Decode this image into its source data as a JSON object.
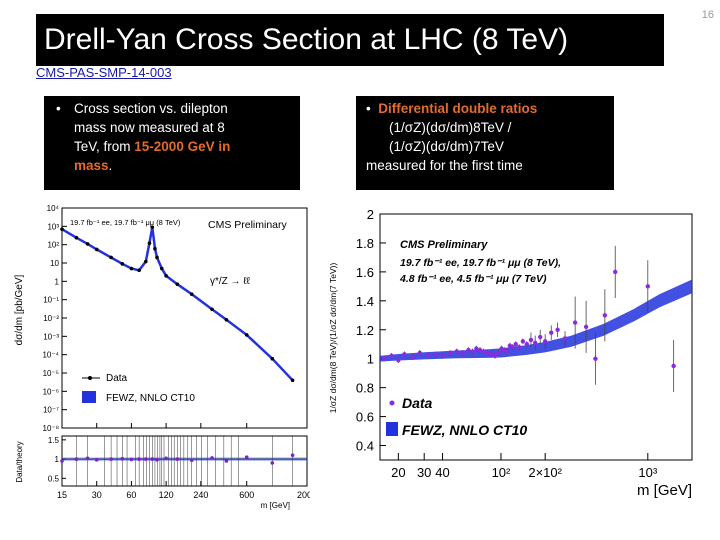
{
  "slide": {
    "number": "16",
    "title": "Drell-Yan Cross Section at LHC (8 TeV)",
    "reference": "CMS-PAS-SMP-14-003"
  },
  "left_box": {
    "bullet": "•",
    "text_1": "Cross section vs. dilepton",
    "text_2": "mass now measured at 8",
    "text_3": "TeV, from ",
    "highlight_1": "15-2000 GeV in",
    "highlight_2": "mass",
    "text_end": "."
  },
  "right_box": {
    "bullet": "•",
    "highlight": "Differential double ratios",
    "line_2": "(1/σZ)(dσ/dm)8TeV /",
    "line_3": "(1/σZ)(dσ/dm)7TeV",
    "line_4": "measured for the first time"
  },
  "chart_data": [
    {
      "type": "line",
      "title": "CMS Preliminary",
      "lumi_label": "19.7 fb⁻¹ ee, 19.7 fb⁻¹ μμ (8 TeV)",
      "process_label": "γ*/Z → ℓℓ",
      "ylabel": "dσ/dm [pb/GeV]",
      "xlabel": "m [GeV]",
      "ratio_ylabel": "Data/theory",
      "x_log": true,
      "y_log": true,
      "xlim": [
        15,
        2000
      ],
      "ylim": [
        1e-08,
        10000
      ],
      "y_ticks": [
        "10⁴",
        "10³",
        "10²",
        "10",
        "1",
        "10⁻¹",
        "10⁻²",
        "10⁻³",
        "10⁻⁴",
        "10⁻⁵",
        "10⁻⁶",
        "10⁻⁷",
        "10⁻⁸"
      ],
      "x_ticks": [
        "15",
        "30",
        "60",
        "120",
        "240",
        "600",
        "2000"
      ],
      "ratio_yticks": [
        "1.5",
        "1",
        "0.5"
      ],
      "ratio_ylim": [
        0.3,
        1.6
      ],
      "legend": [
        "Data",
        "FEWZ, NNLO CT10"
      ],
      "series": [
        {
          "name": "Data",
          "x": [
            15,
            20,
            25,
            30,
            40,
            50,
            60,
            70,
            80,
            86,
            91,
            96,
            100,
            110,
            120,
            150,
            200,
            300,
            400,
            600,
            1000,
            1500
          ],
          "values": [
            700,
            240,
            110,
            55,
            20,
            9,
            5,
            4,
            12,
            120,
            900,
            60,
            20,
            5,
            2,
            0.7,
            0.2,
            0.03,
            0.008,
            0.0012,
            6e-05,
            4e-06
          ]
        }
      ],
      "ratio_x": [
        15,
        20,
        25,
        30,
        40,
        50,
        60,
        70,
        80,
        91,
        100,
        120,
        150,
        200,
        300,
        400,
        600,
        1000,
        1500
      ],
      "ratio_values": [
        0.95,
        1.0,
        1.02,
        0.98,
        1.0,
        1.01,
        0.99,
        1.0,
        1.0,
        1.0,
        0.98,
        1.02,
        1.0,
        0.97,
        1.03,
        0.95,
        1.05,
        0.9,
        1.1
      ]
    },
    {
      "type": "scatter",
      "title": "CMS Preliminary",
      "lumi_line_1": "19.7 fb⁻¹ ee, 19.7 fb⁻¹ μμ (8 TeV),",
      "lumi_line_2": "4.8 fb⁻¹ ee, 4.5 fb⁻¹ μμ (7 TeV)",
      "ylabel": "1/σZ dσ/dm(8 TeV)/(1/σZ dσ/dm(7 TeV))",
      "xlabel": "m [GeV]",
      "x_log": true,
      "xlim": [
        15,
        2000
      ],
      "ylim": [
        0.3,
        2.0
      ],
      "y_ticks": [
        "2",
        "1.8",
        "1.6",
        "1.4",
        "1.2",
        "1",
        "0.8",
        "0.6",
        "0.4"
      ],
      "x_ticks": [
        "20",
        "30",
        "40",
        "10²",
        "2×10²",
        "10³"
      ],
      "legend": [
        "Data",
        "FEWZ, NNLO CT10"
      ],
      "series": [
        {
          "name": "Data",
          "x": [
            16,
            18,
            20,
            22,
            25,
            28,
            32,
            36,
            40,
            45,
            50,
            55,
            60,
            64,
            68,
            72,
            76,
            81,
            86,
            91,
            96,
            101,
            106,
            110,
            115,
            120,
            126,
            133,
            141,
            150,
            160,
            171,
            185,
            200,
            220,
            243,
            273,
            320,
            380,
            440,
            510,
            600,
            1000,
            1500
          ],
          "values": [
            1.0,
            1.02,
            0.99,
            1.03,
            1.01,
            1.04,
            1.02,
            1.03,
            1.02,
            1.04,
            1.05,
            1.04,
            1.06,
            1.05,
            1.07,
            1.06,
            1.05,
            1.04,
            1.03,
            1.02,
            1.04,
            1.07,
            1.06,
            1.05,
            1.09,
            1.08,
            1.1,
            1.08,
            1.12,
            1.1,
            1.13,
            1.11,
            1.15,
            1.12,
            1.18,
            1.2,
            1.14,
            1.25,
            1.22,
            1.0,
            1.3,
            1.6,
            1.5,
            0.95
          ]
        },
        {
          "name": "FEWZ, NNLO CT10",
          "x": [
            15,
            20,
            30,
            50,
            80,
            100,
            150,
            200,
            300,
            500,
            800,
            1200,
            2000
          ],
          "values": [
            1.0,
            1.01,
            1.02,
            1.03,
            1.035,
            1.04,
            1.06,
            1.08,
            1.12,
            1.2,
            1.3,
            1.4,
            1.5
          ]
        }
      ]
    }
  ]
}
